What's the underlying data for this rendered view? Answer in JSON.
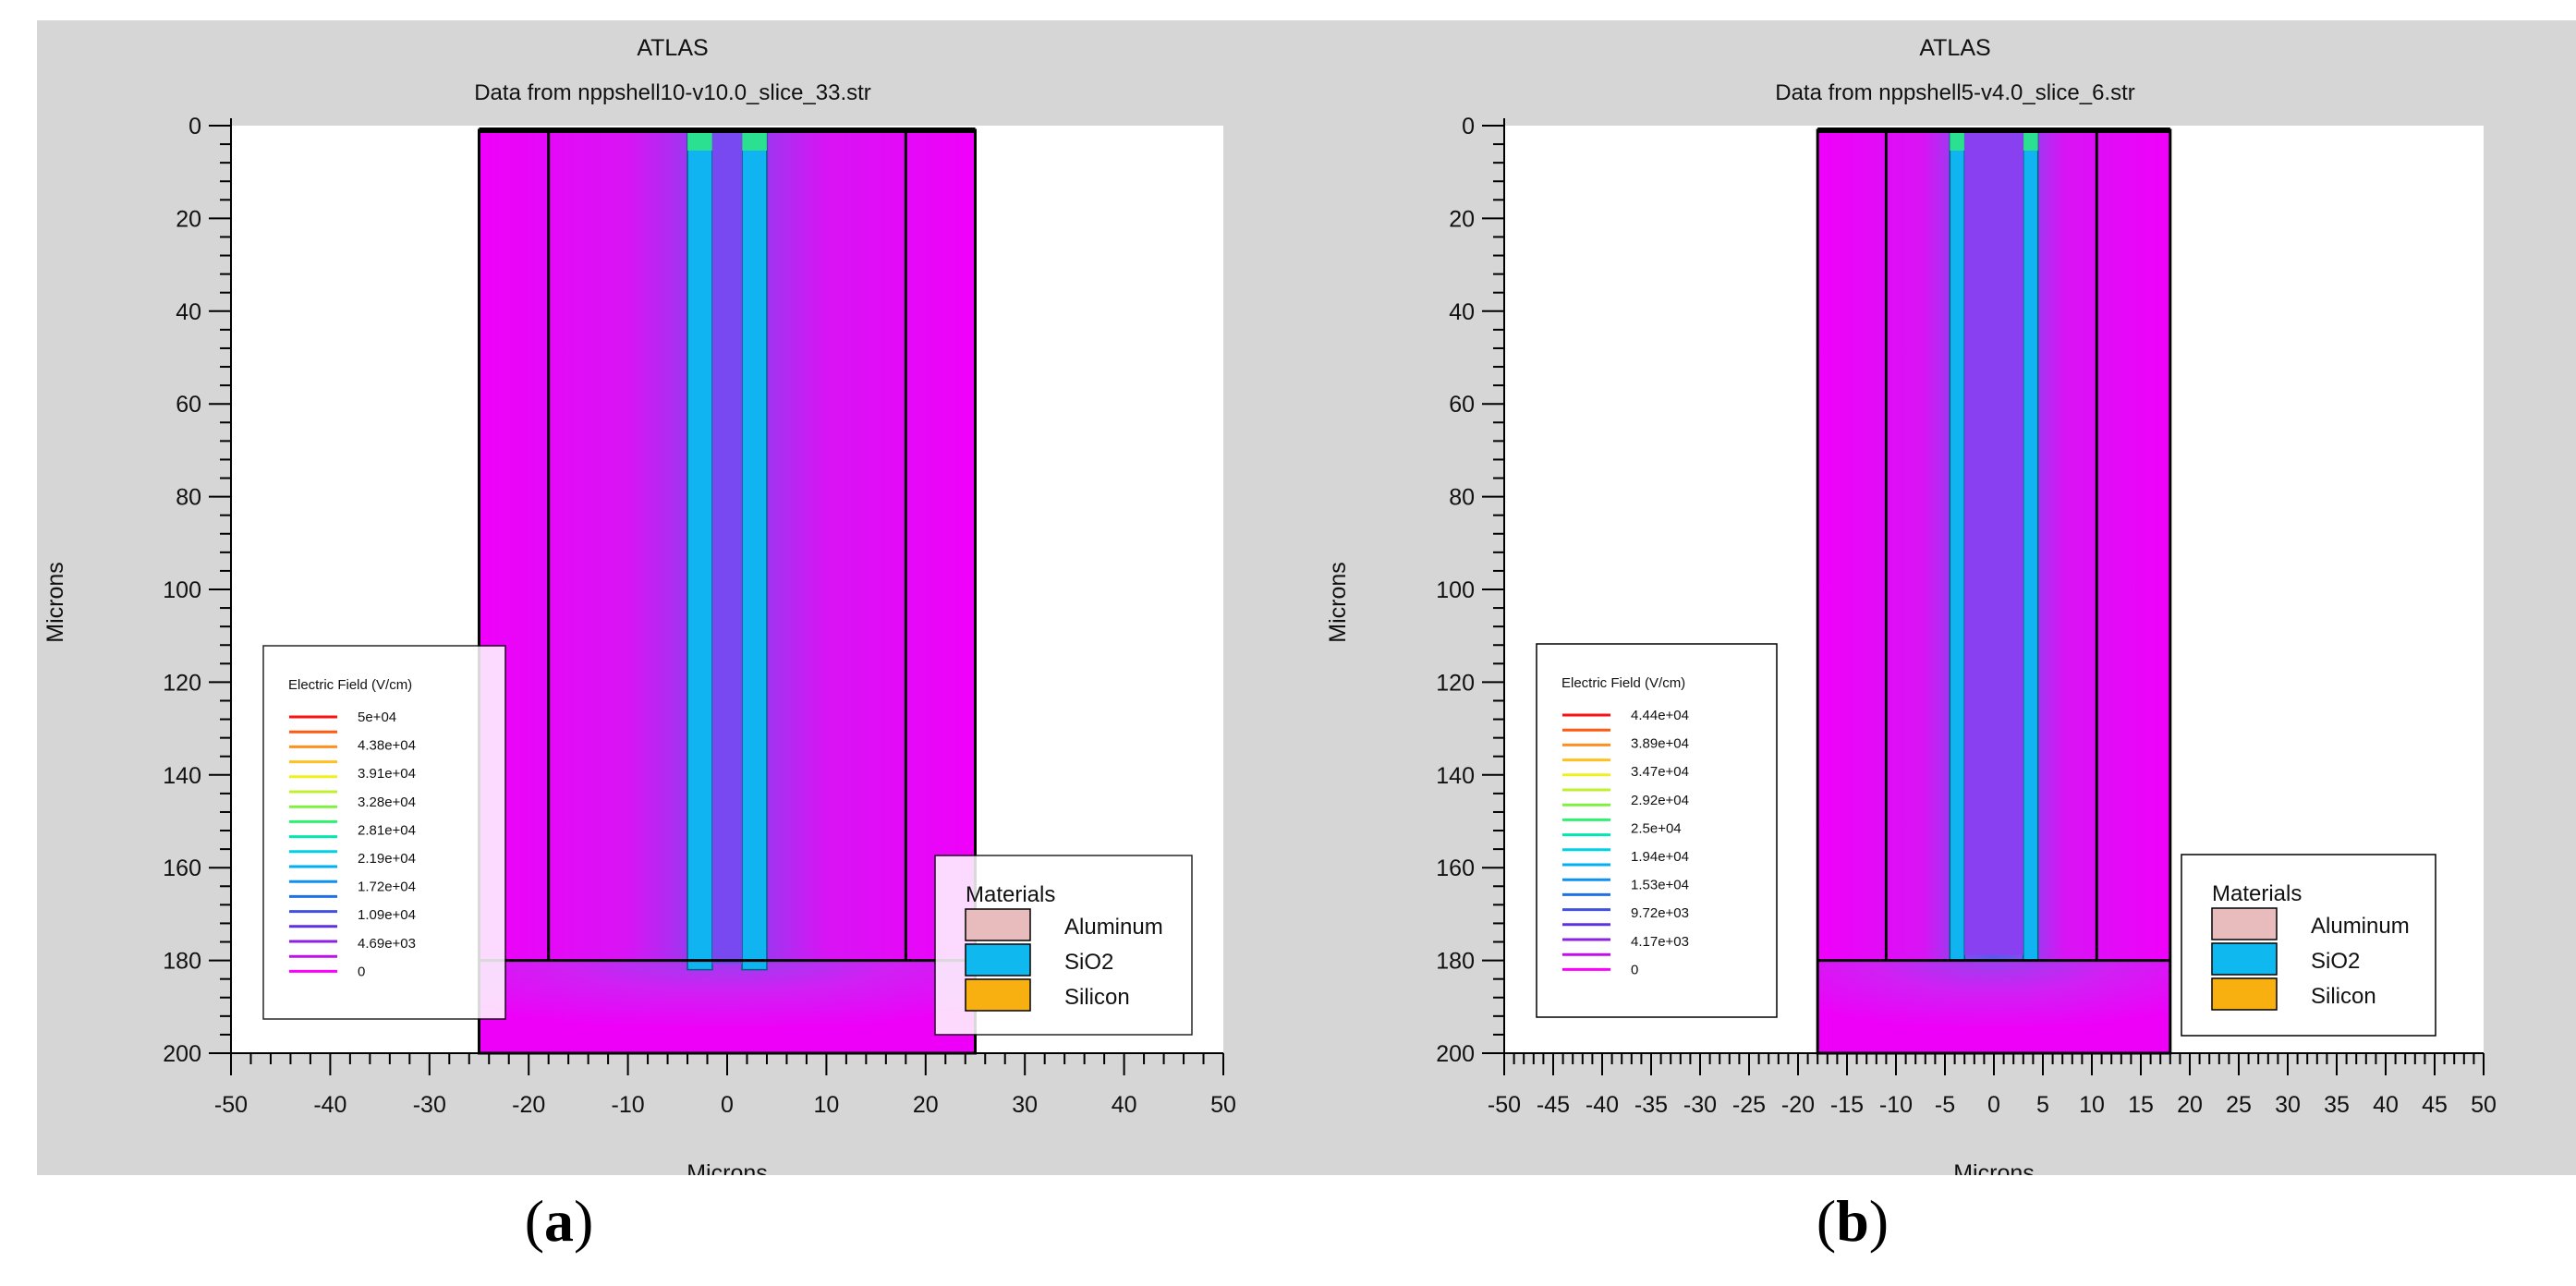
{
  "chart_data": [
    {
      "type": "heatmap",
      "panel_label": "a",
      "title": "ATLAS",
      "subtitle": "Data from nppshell10-v10.0_slice_33.str",
      "xlabel": "Microns",
      "ylabel": "Microns",
      "xlim": [
        -50,
        50
      ],
      "ylim": [
        0,
        200
      ],
      "y_inverted": true,
      "x_ticks": [
        -50,
        -40,
        -30,
        -20,
        -10,
        0,
        10,
        20,
        30,
        40,
        50
      ],
      "x_tick_labels": [
        "-50",
        "-40",
        "-30",
        "-20",
        "-10",
        "0",
        "10",
        "20",
        "30",
        "40",
        "50"
      ],
      "y_ticks": [
        0,
        20,
        40,
        60,
        80,
        100,
        120,
        140,
        160,
        180,
        200
      ],
      "y_tick_labels": [
        "0",
        "20",
        "40",
        "60",
        "80",
        "100",
        "120",
        "140",
        "160",
        "180",
        "200"
      ],
      "device": {
        "x_range": [
          -25,
          25
        ],
        "y_range": [
          0,
          200
        ],
        "region_boundaries_x": [
          -18,
          18
        ],
        "region_boundary_y": 180,
        "trenches": [
          {
            "x_range": [
              -4,
              -1.5
            ],
            "y_range": [
              0,
              182
            ]
          },
          {
            "x_range": [
              1.5,
              4
            ],
            "y_range": [
              0,
              182
            ]
          }
        ]
      },
      "field_legend": {
        "title": "Electric Field (V/cm)",
        "colors": [
          "#ff1010",
          "#ff5a10",
          "#ff9020",
          "#ffc020",
          "#f0f020",
          "#c0f030",
          "#80f040",
          "#30f070",
          "#00e8b0",
          "#00d0e8",
          "#00b0f0",
          "#1090f0",
          "#2070e8",
          "#4050e0",
          "#6030e0",
          "#9020e0",
          "#c010e8",
          "#ff00ff"
        ],
        "labels": [
          "5e+04",
          "4.38e+04",
          "3.91e+04",
          "3.28e+04",
          "2.81e+04",
          "2.19e+04",
          "1.72e+04",
          "1.09e+04",
          "4.69e+03",
          "0"
        ]
      },
      "materials_legend": {
        "title": "Materials",
        "items": [
          {
            "name": "Aluminum",
            "color": "#e8bcbc"
          },
          {
            "name": "SiO2",
            "color": "#10b8f0"
          },
          {
            "name": "Silicon",
            "color": "#f8b010"
          }
        ]
      }
    },
    {
      "type": "heatmap",
      "panel_label": "b",
      "title": "ATLAS",
      "subtitle": "Data from nppshell5-v4.0_slice_6.str",
      "xlabel": "Microns",
      "ylabel": "Microns",
      "xlim": [
        -50,
        50
      ],
      "ylim": [
        0,
        200
      ],
      "y_inverted": true,
      "x_ticks": [
        -50,
        -45,
        -40,
        -35,
        -30,
        -25,
        -20,
        -15,
        -10,
        -5,
        0,
        5,
        10,
        15,
        20,
        25,
        30,
        35,
        40,
        45,
        50
      ],
      "x_tick_labels": [
        "-50",
        "-45",
        "-40",
        "-35",
        "-30",
        "-25",
        "-20",
        "-15",
        "-10",
        "-5",
        "0",
        "5",
        "10",
        "15",
        "20",
        "25",
        "30",
        "35",
        "40",
        "45",
        "50"
      ],
      "y_ticks": [
        0,
        20,
        40,
        60,
        80,
        100,
        120,
        140,
        160,
        180,
        200
      ],
      "y_tick_labels": [
        "0",
        "20",
        "40",
        "60",
        "80",
        "100",
        "120",
        "140",
        "160",
        "180",
        "200"
      ],
      "device": {
        "x_range": [
          -18,
          18
        ],
        "y_range": [
          0,
          200
        ],
        "region_boundaries_x": [
          -11,
          10.5
        ],
        "region_boundary_y": 180,
        "trenches": [
          {
            "x_range": [
              -4.5,
              -3
            ],
            "y_range": [
              0,
              180
            ]
          },
          {
            "x_range": [
              3,
              4.5
            ],
            "y_range": [
              0,
              180
            ]
          }
        ]
      },
      "field_legend": {
        "title": "Electric Field (V/cm)",
        "colors": [
          "#ff1010",
          "#ff5a10",
          "#ff9020",
          "#ffc020",
          "#f0f020",
          "#c0f030",
          "#80f040",
          "#30f070",
          "#00e8b0",
          "#00d0e8",
          "#00b0f0",
          "#1090f0",
          "#2070e8",
          "#4050e0",
          "#6030e0",
          "#9020e0",
          "#c010e8",
          "#ff00ff"
        ],
        "labels": [
          "4.44e+04",
          "3.89e+04",
          "3.47e+04",
          "2.92e+04",
          "2.5e+04",
          "1.94e+04",
          "1.53e+04",
          "9.72e+03",
          "4.17e+03",
          "0"
        ]
      },
      "materials_legend": {
        "title": "Materials",
        "items": [
          {
            "name": "Aluminum",
            "color": "#e8bcbc"
          },
          {
            "name": "SiO2",
            "color": "#10b8f0"
          },
          {
            "name": "Silicon",
            "color": "#f8b010"
          }
        ]
      }
    }
  ],
  "captions": {
    "a": "a",
    "b": "b"
  }
}
